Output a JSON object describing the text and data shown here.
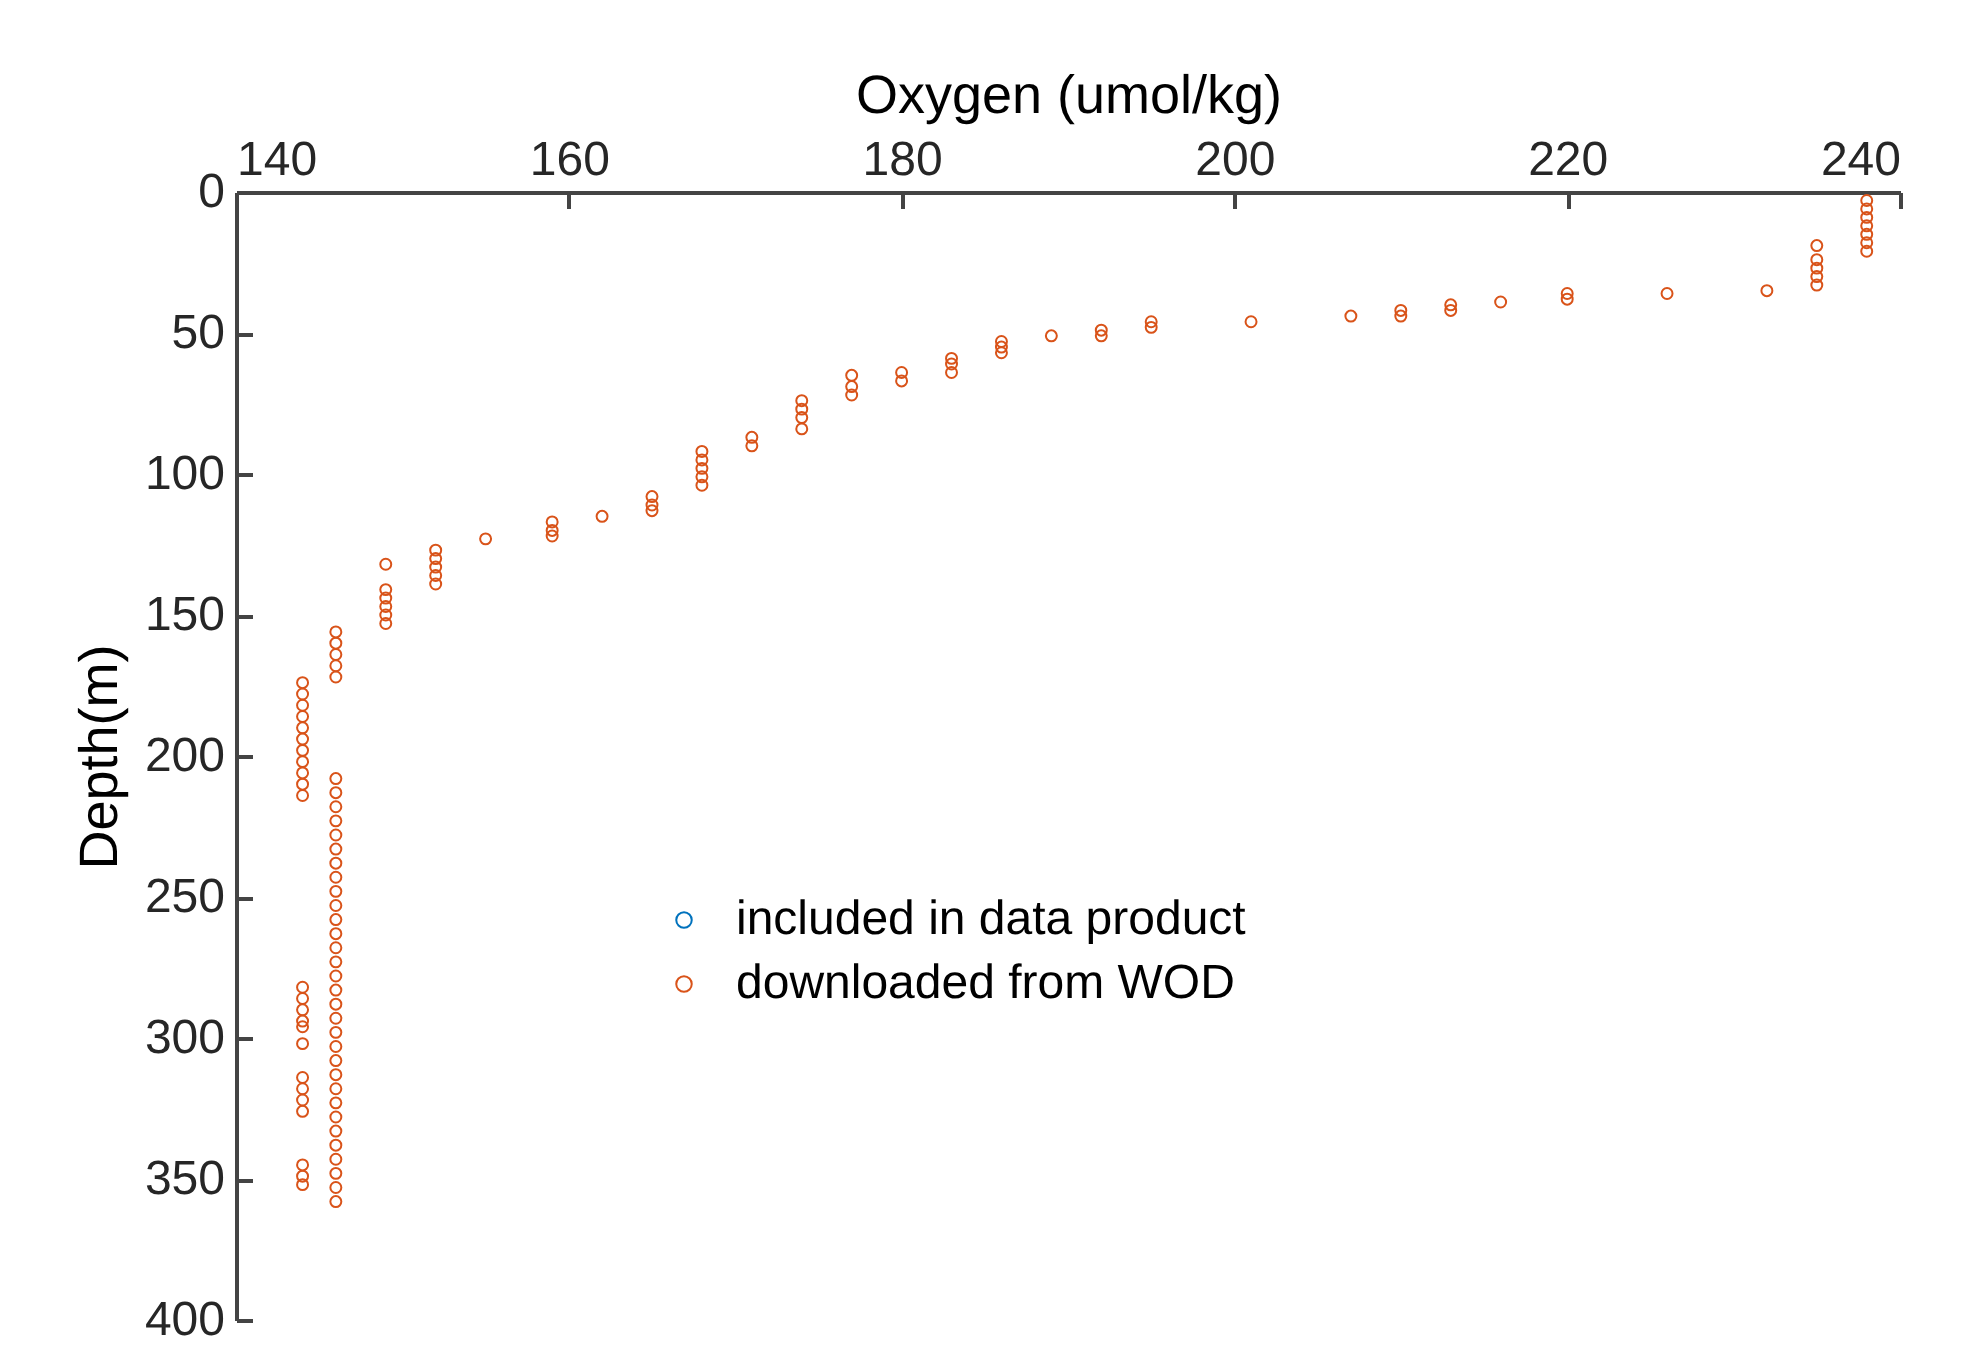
{
  "chart_data": {
    "type": "scatter",
    "xlabel": "Oxygen (umol/kg)",
    "ylabel": "Depth(m)",
    "xlim": [
      140,
      240
    ],
    "xticks": [
      140,
      160,
      180,
      200,
      220,
      240
    ],
    "ylim": [
      400,
      0
    ],
    "yticks": [
      0,
      50,
      100,
      150,
      200,
      250,
      300,
      350,
      400
    ],
    "grid": false,
    "legend": "bottom",
    "marker": "circle",
    "series": [
      {
        "name": "included in data product",
        "color": "#0072bd"
      },
      {
        "name": "downloaded from WOD",
        "color": "#d95319",
        "x": [
          238,
          238,
          238,
          238,
          238,
          238,
          238,
          235,
          235,
          235,
          235,
          235,
          232,
          226,
          220,
          220,
          216,
          213,
          213,
          210,
          210,
          207,
          201,
          195,
          195,
          192,
          192,
          189,
          186,
          186,
          186,
          183,
          183,
          183,
          180,
          180,
          177,
          177,
          177,
          174,
          174,
          174,
          174,
          171,
          171,
          168,
          168,
          168,
          168,
          168,
          165,
          165,
          165,
          162,
          159,
          159,
          159,
          155,
          152,
          152,
          152,
          152,
          152,
          149,
          149,
          149,
          149,
          149,
          149,
          146,
          146,
          146,
          146,
          146,
          144,
          144,
          144,
          144,
          144,
          144,
          144,
          144,
          144,
          144,
          144,
          146,
          146,
          146,
          146,
          146,
          146,
          146,
          146,
          146,
          146,
          146,
          146,
          146,
          146,
          146,
          146,
          146,
          146,
          146,
          146,
          146,
          146,
          146,
          146,
          146,
          146,
          146,
          146,
          146,
          146,
          146,
          144,
          144,
          144,
          144,
          144,
          144,
          144,
          144,
          144,
          144,
          144,
          144,
          144
        ],
        "values": [
          3,
          6,
          9,
          12,
          15,
          18,
          21,
          19,
          24,
          27,
          30,
          33,
          35,
          36,
          36,
          38,
          39,
          40,
          42,
          42,
          44,
          44,
          46,
          46,
          48,
          49,
          51,
          51,
          53,
          55,
          57,
          59,
          61,
          64,
          64,
          67,
          65,
          69,
          72,
          74,
          77,
          80,
          84,
          87,
          90,
          92,
          95,
          98,
          101,
          104,
          108,
          111,
          113,
          115,
          117,
          120,
          122,
          123,
          127,
          130,
          133,
          136,
          139,
          132,
          141,
          144,
          147,
          150,
          153,
          156,
          160,
          164,
          168,
          172,
          174,
          178,
          182,
          186,
          190,
          194,
          198,
          202,
          206,
          210,
          214,
          208,
          213,
          218,
          223,
          228,
          233,
          238,
          243,
          248,
          253,
          258,
          263,
          268,
          273,
          278,
          283,
          288,
          293,
          298,
          303,
          308,
          313,
          318,
          323,
          328,
          333,
          338,
          343,
          348,
          353,
          358,
          282,
          286,
          290,
          294,
          296,
          302,
          314,
          318,
          322,
          326,
          345,
          349,
          352
        ]
      }
    ]
  }
}
